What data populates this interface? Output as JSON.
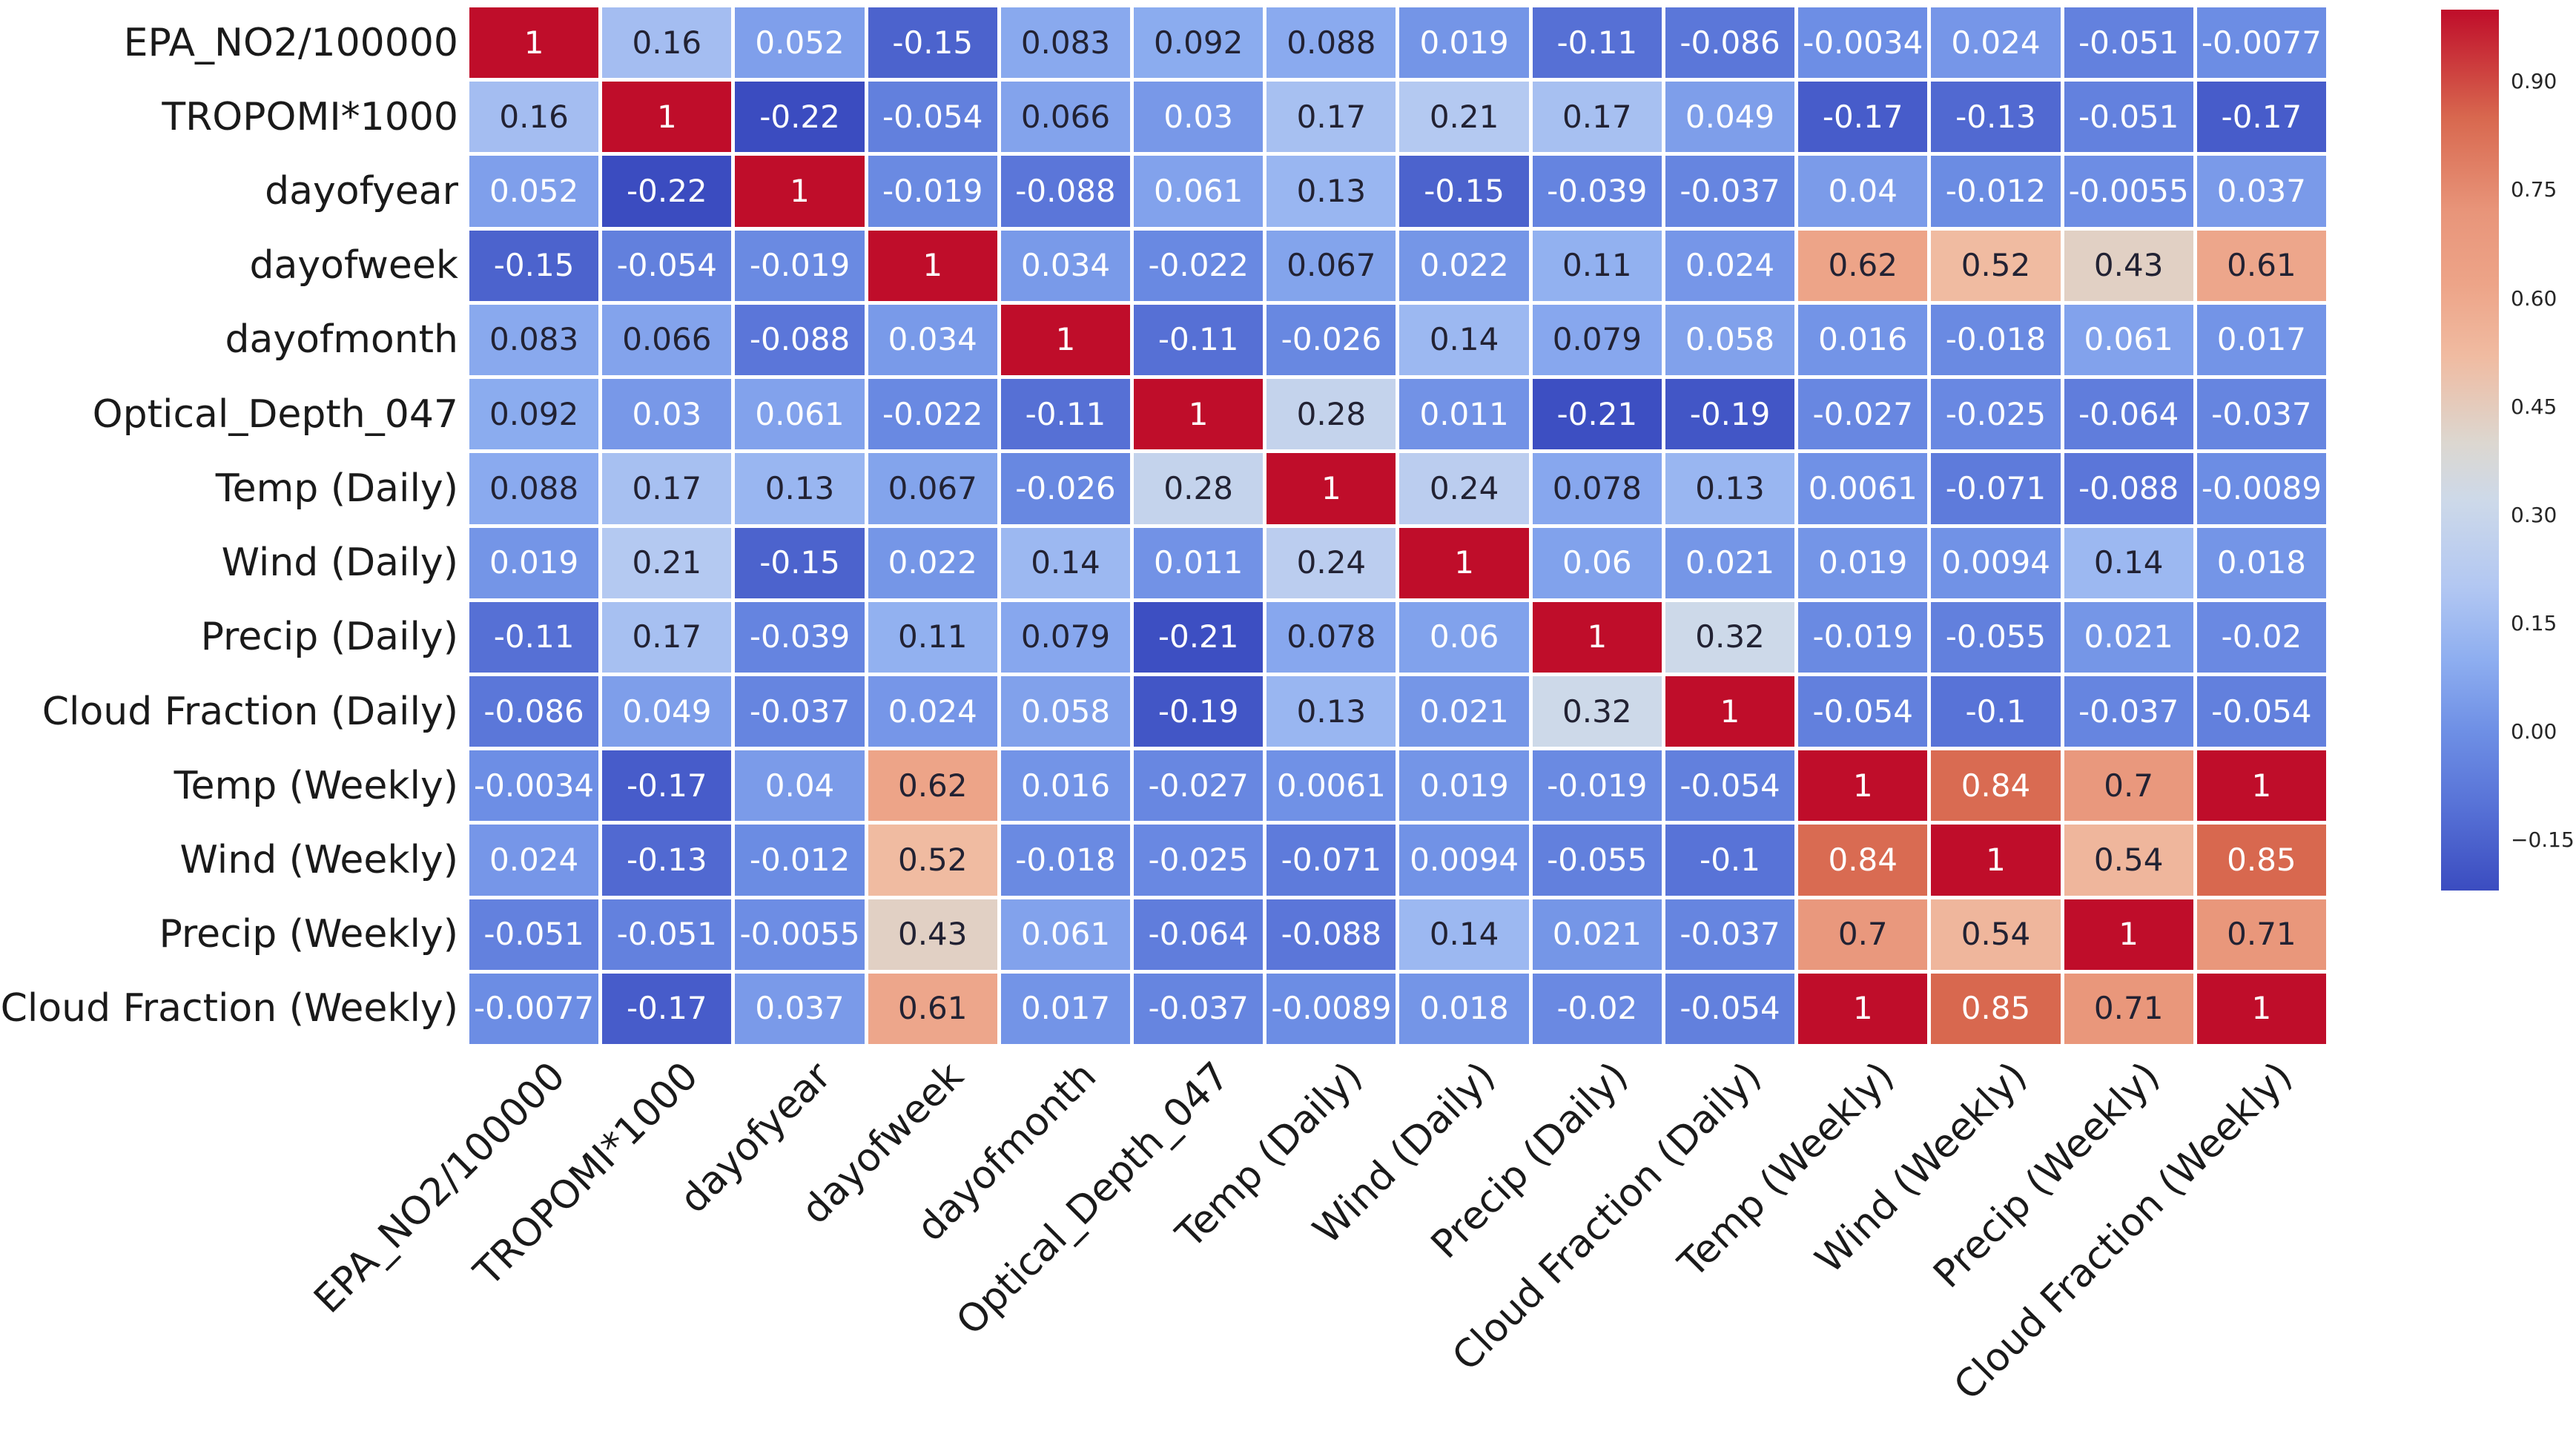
{
  "figure": {
    "background": "#ffffff",
    "label_color": "#1a1a1a"
  },
  "chart_data": {
    "type": "heatmap",
    "title": "",
    "legend_position": "right-colorbar",
    "grid": false,
    "variables": [
      "EPA_NO2/100000",
      "TROPOMI*1000",
      "dayofyear",
      "dayofweek",
      "dayofmonth",
      "Optical_Depth_047",
      "Temp (Daily)",
      "Wind (Daily)",
      "Precip (Daily)",
      "Cloud Fraction (Daily)",
      "Temp (Weekly)",
      "Wind (Weekly)",
      "Precip (Weekly)",
      "Cloud Fraction (Weekly)"
    ],
    "matrix": [
      [
        "1",
        "0.16",
        "0.052",
        "-0.15",
        "0.083",
        "0.092",
        "0.088",
        "0.019",
        "-0.11",
        "-0.086",
        "-0.0034",
        "0.024",
        "-0.051",
        "-0.0077"
      ],
      [
        "0.16",
        "1",
        "-0.22",
        "-0.054",
        "0.066",
        "0.03",
        "0.17",
        "0.21",
        "0.17",
        "0.049",
        "-0.17",
        "-0.13",
        "-0.051",
        "-0.17"
      ],
      [
        "0.052",
        "-0.22",
        "1",
        "-0.019",
        "-0.088",
        "0.061",
        "0.13",
        "-0.15",
        "-0.039",
        "-0.037",
        "0.04",
        "-0.012",
        "-0.0055",
        "0.037"
      ],
      [
        "-0.15",
        "-0.054",
        "-0.019",
        "1",
        "0.034",
        "-0.022",
        "0.067",
        "0.022",
        "0.11",
        "0.024",
        "0.62",
        "0.52",
        "0.43",
        "0.61"
      ],
      [
        "0.083",
        "0.066",
        "-0.088",
        "0.034",
        "1",
        "-0.11",
        "-0.026",
        "0.14",
        "0.079",
        "0.058",
        "0.016",
        "-0.018",
        "0.061",
        "0.017"
      ],
      [
        "0.092",
        "0.03",
        "0.061",
        "-0.022",
        "-0.11",
        "1",
        "0.28",
        "0.011",
        "-0.21",
        "-0.19",
        "-0.027",
        "-0.025",
        "-0.064",
        "-0.037"
      ],
      [
        "0.088",
        "0.17",
        "0.13",
        "0.067",
        "-0.026",
        "0.28",
        "1",
        "0.24",
        "0.078",
        "0.13",
        "0.0061",
        "-0.071",
        "-0.088",
        "-0.0089"
      ],
      [
        "0.019",
        "0.21",
        "-0.15",
        "0.022",
        "0.14",
        "0.011",
        "0.24",
        "1",
        "0.06",
        "0.021",
        "0.019",
        "0.0094",
        "0.14",
        "0.018"
      ],
      [
        "-0.11",
        "0.17",
        "-0.039",
        "0.11",
        "0.079",
        "-0.21",
        "0.078",
        "0.06",
        "1",
        "0.32",
        "-0.019",
        "-0.055",
        "0.021",
        "-0.02"
      ],
      [
        "-0.086",
        "0.049",
        "-0.037",
        "0.024",
        "0.058",
        "-0.19",
        "0.13",
        "0.021",
        "0.32",
        "1",
        "-0.054",
        "-0.1",
        "-0.037",
        "-0.054"
      ],
      [
        "-0.0034",
        "-0.17",
        "0.04",
        "0.62",
        "0.016",
        "-0.027",
        "0.0061",
        "0.019",
        "-0.019",
        "-0.054",
        "1",
        "0.84",
        "0.7",
        "1"
      ],
      [
        "0.024",
        "-0.13",
        "-0.012",
        "0.52",
        "-0.018",
        "-0.025",
        "-0.071",
        "0.0094",
        "-0.055",
        "-0.1",
        "0.84",
        "1",
        "0.54",
        "0.85"
      ],
      [
        "-0.051",
        "-0.051",
        "-0.0055",
        "0.43",
        "0.061",
        "-0.064",
        "-0.088",
        "0.14",
        "0.021",
        "-0.037",
        "0.7",
        "0.54",
        "1",
        "0.71"
      ],
      [
        "-0.0077",
        "-0.17",
        "0.037",
        "0.61",
        "0.017",
        "-0.037",
        "-0.0089",
        "0.018",
        "-0.02",
        "-0.054",
        "1",
        "0.85",
        "0.71",
        "1"
      ]
    ],
    "colormap": {
      "name": "coolwarm",
      "vmin": -0.22,
      "vmax": 1.0,
      "anchors": [
        [
          -0.22,
          "#3b4cc0"
        ],
        [
          -0.1,
          "#5873d7"
        ],
        [
          0.0,
          "#6e8fe5"
        ],
        [
          0.1,
          "#8eaef0"
        ],
        [
          0.2,
          "#b2c7f2"
        ],
        [
          0.32,
          "#cdd9e9"
        ],
        [
          0.4,
          "#dcd7d0"
        ],
        [
          0.52,
          "#f0bba1"
        ],
        [
          0.62,
          "#eda488"
        ],
        [
          0.72,
          "#e8957a"
        ],
        [
          0.85,
          "#d8684f"
        ],
        [
          1.0,
          "#bf0d2a"
        ]
      ]
    },
    "annotation_colors": {
      "dark": "#222233",
      "light": "#ffffff"
    },
    "colorbar": {
      "tick_labels": [
        "0.90",
        "0.75",
        "0.60",
        "0.45",
        "0.30",
        "0.15",
        "0.00",
        "−0.15"
      ],
      "tick_values": [
        0.9,
        0.75,
        0.6,
        0.45,
        0.3,
        0.15,
        0.0,
        -0.15
      ]
    }
  }
}
